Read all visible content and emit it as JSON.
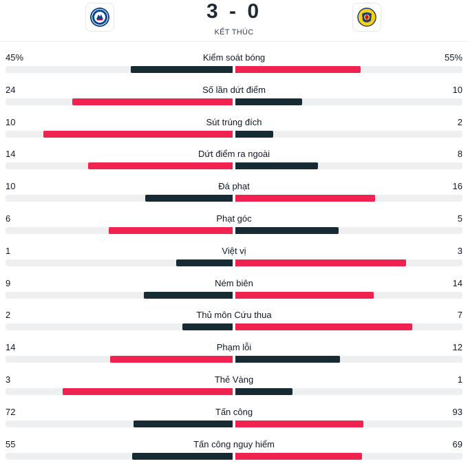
{
  "match": {
    "score": "3 - 0",
    "status": "KẾT THÚC",
    "home_crest_icon": "chelsea-crest-icon",
    "away_crest_icon": "club-america-crest-icon"
  },
  "colors": {
    "win": "#f0224f",
    "lose": "#172b35",
    "track": "#eeeff1"
  },
  "stats": [
    {
      "label": "Kiểm soát bóng",
      "home": "45%",
      "away": "55%",
      "home_val": 45,
      "away_val": 55
    },
    {
      "label": "Số lần dứt điểm",
      "home": "24",
      "away": "10",
      "home_val": 24,
      "away_val": 10
    },
    {
      "label": "Sút trúng đích",
      "home": "10",
      "away": "2",
      "home_val": 10,
      "away_val": 2
    },
    {
      "label": "Dứt điểm ra ngoài",
      "home": "14",
      "away": "8",
      "home_val": 14,
      "away_val": 8
    },
    {
      "label": "Đá phạt",
      "home": "10",
      "away": "16",
      "home_val": 10,
      "away_val": 16
    },
    {
      "label": "Phạt góc",
      "home": "6",
      "away": "5",
      "home_val": 6,
      "away_val": 5
    },
    {
      "label": "Việt vị",
      "home": "1",
      "away": "3",
      "home_val": 1,
      "away_val": 3
    },
    {
      "label": "Ném biên",
      "home": "9",
      "away": "14",
      "home_val": 9,
      "away_val": 14
    },
    {
      "label": "Thủ môn Cứu thua",
      "home": "2",
      "away": "7",
      "home_val": 2,
      "away_val": 7
    },
    {
      "label": "Phạm lỗi",
      "home": "14",
      "away": "12",
      "home_val": 14,
      "away_val": 12
    },
    {
      "label": "Thẻ Vàng",
      "home": "3",
      "away": "1",
      "home_val": 3,
      "away_val": 1
    },
    {
      "label": "Tấn công",
      "home": "72",
      "away": "93",
      "home_val": 72,
      "away_val": 93
    },
    {
      "label": "Tấn công nguy hiểm",
      "home": "55",
      "away": "69",
      "home_val": 55,
      "away_val": 69
    }
  ]
}
